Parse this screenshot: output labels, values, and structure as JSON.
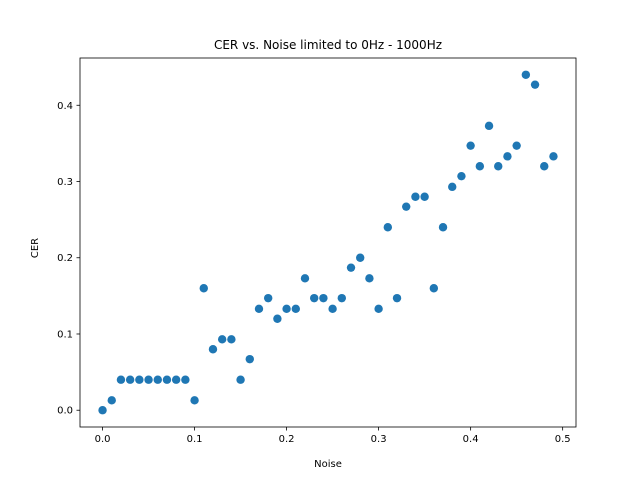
{
  "chart_data": {
    "type": "scatter",
    "title": "CER vs. Noise limited to 0Hz - 1000Hz",
    "xlabel": "Noise",
    "ylabel": "CER",
    "xlim": [
      -0.0245,
      0.5145
    ],
    "ylim": [
      -0.022,
      0.462
    ],
    "x_ticks": [
      0.0,
      0.1,
      0.2,
      0.3,
      0.4,
      0.5
    ],
    "x_tick_labels": [
      "0.0",
      "0.1",
      "0.2",
      "0.3",
      "0.4",
      "0.5"
    ],
    "y_ticks": [
      0.0,
      0.1,
      0.2,
      0.3,
      0.4
    ],
    "y_tick_labels": [
      "0.0",
      "0.1",
      "0.2",
      "0.3",
      "0.4"
    ],
    "grid": false,
    "legend": "none",
    "marker_color": "#1f77b4",
    "series": [
      {
        "x": [
          0.0,
          0.01,
          0.02,
          0.03,
          0.04,
          0.05,
          0.06,
          0.07,
          0.08,
          0.09,
          0.1,
          0.11,
          0.12,
          0.13,
          0.14,
          0.15,
          0.16,
          0.17,
          0.18,
          0.19,
          0.2,
          0.21,
          0.22,
          0.23,
          0.24,
          0.25,
          0.26,
          0.27,
          0.28,
          0.29,
          0.3,
          0.31,
          0.32,
          0.33,
          0.34,
          0.35,
          0.36,
          0.37,
          0.38,
          0.39,
          0.4,
          0.41,
          0.42,
          0.43,
          0.44,
          0.45,
          0.46,
          0.47,
          0.48,
          0.49
        ],
        "y": [
          0.0,
          0.013,
          0.04,
          0.04,
          0.04,
          0.04,
          0.04,
          0.04,
          0.04,
          0.04,
          0.013,
          0.16,
          0.08,
          0.093,
          0.093,
          0.04,
          0.067,
          0.133,
          0.147,
          0.12,
          0.133,
          0.133,
          0.173,
          0.147,
          0.147,
          0.133,
          0.147,
          0.187,
          0.2,
          0.173,
          0.133,
          0.24,
          0.147,
          0.267,
          0.28,
          0.28,
          0.16,
          0.24,
          0.293,
          0.307,
          0.347,
          0.32,
          0.373,
          0.32,
          0.333,
          0.347,
          0.44,
          0.427,
          0.32,
          0.333
        ]
      }
    ]
  }
}
